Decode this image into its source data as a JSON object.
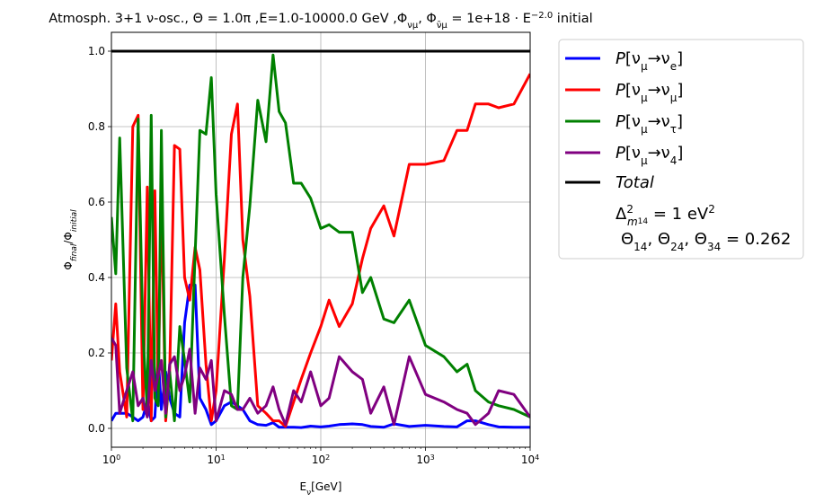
{
  "chart_data": {
    "type": "line",
    "title": "Atmosph. 3+1 ν-osc., Θ = 1.0π ,E=1.0-10000.0 GeV  ,Φ_νμ, Φ_ν̄μ = 1e+18 · E^-2.0 initial",
    "xlabel": "E_ν[GeV]",
    "ylabel": "Φ_final/Φ_initial",
    "xscale": "log",
    "xlim": [
      1,
      10000
    ],
    "ylim": [
      -0.05,
      1.05
    ],
    "grid": true,
    "legend_position": "outside-right",
    "x_tick_labels": [
      {
        "value": 1,
        "base": "10",
        "exp": "0"
      },
      {
        "value": 10,
        "base": "10",
        "exp": "1"
      },
      {
        "value": 100,
        "base": "10",
        "exp": "2"
      },
      {
        "value": 1000,
        "base": "10",
        "exp": "3"
      },
      {
        "value": 10000,
        "base": "10",
        "exp": "4"
      }
    ],
    "y_ticks": [
      0.0,
      0.2,
      0.4,
      0.6,
      0.8,
      1.0
    ],
    "y_tick_labels": [
      "0.0",
      "0.2",
      "0.4",
      "0.6",
      "0.8",
      "1.0"
    ],
    "annotation": {
      "line1": "Δ²_m14 = 1 eV²",
      "line2": "Θ14, Θ24, Θ34 = 0.262"
    },
    "series": [
      {
        "name": "P[νμ→νe]",
        "legend_main": "P[ν",
        "legend_sub1": "μ",
        "legend_mid": "→ν",
        "legend_sub2": "e",
        "legend_end": "]",
        "color": "#0000ff",
        "x": [
          1.0,
          1.1,
          1.2,
          1.4,
          1.6,
          1.8,
          2.0,
          2.2,
          2.4,
          2.6,
          2.8,
          3.0,
          3.3,
          3.6,
          4.0,
          4.5,
          5.0,
          5.6,
          6.3,
          7.0,
          8.0,
          9.0,
          10,
          12,
          14,
          16,
          18,
          21,
          25,
          30,
          35,
          40,
          46,
          55,
          65,
          80,
          100,
          120,
          150,
          200,
          250,
          300,
          400,
          500,
          700,
          1000,
          1500,
          2000,
          2500,
          3000,
          4000,
          5000,
          7000,
          10000
        ],
        "y": [
          0.02,
          0.04,
          0.04,
          0.04,
          0.03,
          0.02,
          0.03,
          0.07,
          0.02,
          0.03,
          0.19,
          0.05,
          0.15,
          0.08,
          0.04,
          0.03,
          0.28,
          0.38,
          0.38,
          0.08,
          0.05,
          0.01,
          0.02,
          0.06,
          0.07,
          0.06,
          0.05,
          0.02,
          0.01,
          0.008,
          0.015,
          0.003,
          0.003,
          0.003,
          0.002,
          0.006,
          0.004,
          0.006,
          0.01,
          0.012,
          0.01,
          0.005,
          0.003,
          0.012,
          0.005,
          0.008,
          0.005,
          0.004,
          0.02,
          0.02,
          0.01,
          0.004,
          0.003,
          0.003
        ]
      },
      {
        "name": "P[νμ→νμ]",
        "legend_main": "P[ν",
        "legend_sub1": "μ",
        "legend_mid": "→ν",
        "legend_sub2": "μ",
        "legend_end": "]",
        "color": "#ff0000",
        "x": [
          1.0,
          1.1,
          1.2,
          1.4,
          1.6,
          1.8,
          2.0,
          2.2,
          2.4,
          2.6,
          2.8,
          3.0,
          3.3,
          3.6,
          4.0,
          4.5,
          5.0,
          5.6,
          6.3,
          7.0,
          8.0,
          9.0,
          10,
          12,
          14,
          16,
          18,
          21,
          25,
          30,
          35,
          40,
          46,
          55,
          65,
          80,
          100,
          120,
          150,
          200,
          250,
          300,
          400,
          500,
          700,
          1000,
          1500,
          2000,
          2500,
          3000,
          4000,
          5000,
          7000,
          10000
        ],
        "y": [
          0.18,
          0.33,
          0.15,
          0.03,
          0.8,
          0.83,
          0.05,
          0.64,
          0.02,
          0.63,
          0.1,
          0.62,
          0.02,
          0.15,
          0.75,
          0.74,
          0.4,
          0.34,
          0.48,
          0.42,
          0.17,
          0.02,
          0.1,
          0.45,
          0.78,
          0.86,
          0.5,
          0.35,
          0.06,
          0.04,
          0.02,
          0.02,
          0.005,
          0.07,
          0.13,
          0.2,
          0.27,
          0.34,
          0.27,
          0.33,
          0.45,
          0.53,
          0.59,
          0.51,
          0.7,
          0.7,
          0.71,
          0.79,
          0.79,
          0.86,
          0.86,
          0.85,
          0.86,
          0.94
        ]
      },
      {
        "name": "P[νμ→ντ]",
        "legend_main": "P[ν",
        "legend_sub1": "μ",
        "legend_mid": "→ν",
        "legend_sub2": "τ",
        "legend_end": "]",
        "color": "#008000",
        "x": [
          1.0,
          1.1,
          1.2,
          1.4,
          1.6,
          1.8,
          2.0,
          2.2,
          2.4,
          2.6,
          2.8,
          3.0,
          3.3,
          3.6,
          4.0,
          4.5,
          5.0,
          5.6,
          6.3,
          7.0,
          8.0,
          9.0,
          10,
          12,
          14,
          16,
          18,
          21,
          25,
          30,
          35,
          40,
          46,
          55,
          65,
          80,
          100,
          120,
          150,
          200,
          250,
          300,
          400,
          500,
          700,
          1000,
          1500,
          2000,
          2500,
          3000,
          4000,
          5000,
          7000,
          10000
        ],
        "y": [
          0.56,
          0.41,
          0.77,
          0.16,
          0.02,
          0.82,
          0.25,
          0.05,
          0.83,
          0.08,
          0.06,
          0.79,
          0.03,
          0.15,
          0.02,
          0.27,
          0.18,
          0.07,
          0.46,
          0.79,
          0.78,
          0.93,
          0.62,
          0.3,
          0.06,
          0.05,
          0.4,
          0.59,
          0.87,
          0.76,
          0.99,
          0.84,
          0.81,
          0.65,
          0.65,
          0.61,
          0.53,
          0.54,
          0.52,
          0.52,
          0.36,
          0.4,
          0.29,
          0.28,
          0.34,
          0.22,
          0.19,
          0.15,
          0.17,
          0.1,
          0.07,
          0.06,
          0.05,
          0.03
        ]
      },
      {
        "name": "P[νμ→ν4]",
        "legend_main": "P[ν",
        "legend_sub1": "μ",
        "legend_mid": "→ν",
        "legend_sub2": "4",
        "legend_end": "]",
        "color": "#800080",
        "x": [
          1.0,
          1.1,
          1.2,
          1.4,
          1.6,
          1.8,
          2.0,
          2.2,
          2.4,
          2.6,
          2.8,
          3.0,
          3.3,
          3.6,
          4.0,
          4.5,
          5.0,
          5.6,
          6.3,
          7.0,
          8.0,
          9.0,
          10,
          12,
          14,
          16,
          18,
          21,
          25,
          30,
          35,
          40,
          46,
          55,
          65,
          80,
          100,
          120,
          150,
          200,
          250,
          300,
          400,
          500,
          700,
          1000,
          1500,
          2000,
          2500,
          3000,
          4000,
          5000,
          7000,
          10000
        ],
        "y": [
          0.24,
          0.22,
          0.04,
          0.1,
          0.15,
          0.06,
          0.08,
          0.03,
          0.18,
          0.1,
          0.14,
          0.18,
          0.04,
          0.17,
          0.19,
          0.1,
          0.14,
          0.21,
          0.04,
          0.16,
          0.13,
          0.18,
          0.02,
          0.1,
          0.09,
          0.05,
          0.05,
          0.08,
          0.04,
          0.06,
          0.11,
          0.05,
          0.01,
          0.1,
          0.07,
          0.15,
          0.06,
          0.08,
          0.19,
          0.15,
          0.13,
          0.04,
          0.11,
          0.01,
          0.19,
          0.09,
          0.07,
          0.05,
          0.04,
          0.01,
          0.04,
          0.1,
          0.09,
          0.03
        ]
      },
      {
        "name": "Total",
        "color": "#000000",
        "x": [
          1,
          10000
        ],
        "y": [
          1.0,
          1.0
        ]
      }
    ]
  }
}
